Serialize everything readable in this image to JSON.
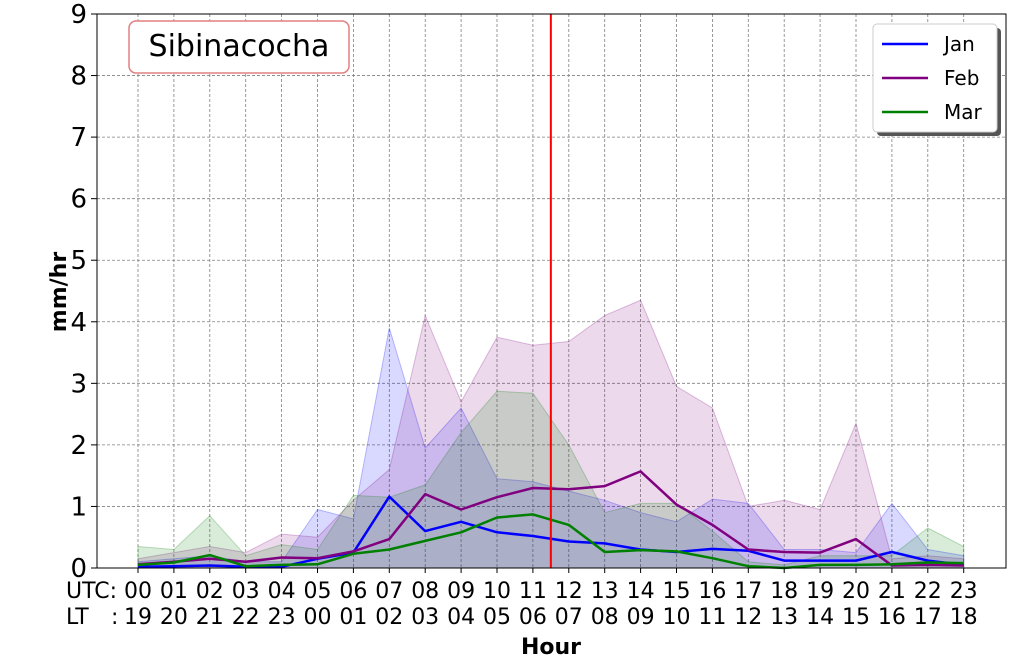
{
  "chart_data": {
    "type": "line",
    "title": "Sibinacocha",
    "xlabel": "Hour",
    "ylabel": "mm/hr",
    "ylim": [
      0,
      9
    ],
    "yticks": [
      "0",
      "1",
      "2",
      "3",
      "4",
      "5",
      "6",
      "7",
      "8",
      "9"
    ],
    "utc_prefix": "UTC:",
    "lt_prefix": "LT",
    "lt_colon": ":",
    "utc_labels": [
      "00",
      "01",
      "02",
      "03",
      "04",
      "05",
      "06",
      "07",
      "08",
      "09",
      "10",
      "11",
      "12",
      "13",
      "14",
      "15",
      "16",
      "17",
      "18",
      "19",
      "20",
      "21",
      "22",
      "23"
    ],
    "lt_labels": [
      "19",
      "20",
      "21",
      "22",
      "23",
      "00",
      "01",
      "02",
      "03",
      "04",
      "05",
      "06",
      "07",
      "08",
      "09",
      "10",
      "11",
      "12",
      "13",
      "14",
      "15",
      "16",
      "17",
      "18"
    ],
    "grid": true,
    "legend_position": "top-right",
    "vline_x": 11.5,
    "vline_color": "#ff0000",
    "series": [
      {
        "name": "Jan",
        "color": "#0000ff",
        "values": [
          0.02,
          0.03,
          0.04,
          0.02,
          0.02,
          0.15,
          0.25,
          1.16,
          0.6,
          0.75,
          0.58,
          0.52,
          0.43,
          0.4,
          0.3,
          0.26,
          0.31,
          0.28,
          0.12,
          0.12,
          0.12,
          0.26,
          0.12,
          0.05
        ],
        "upper": [
          0.1,
          0.15,
          0.2,
          0.1,
          0.1,
          0.95,
          0.8,
          3.9,
          1.95,
          2.6,
          1.45,
          1.4,
          1.25,
          1.1,
          0.9,
          0.75,
          1.12,
          1.05,
          0.3,
          0.3,
          0.25,
          1.05,
          0.3,
          0.2
        ]
      },
      {
        "name": "Feb",
        "color": "#800080",
        "values": [
          0.06,
          0.1,
          0.15,
          0.1,
          0.17,
          0.16,
          0.27,
          0.47,
          1.2,
          0.95,
          1.15,
          1.3,
          1.28,
          1.33,
          1.57,
          1.03,
          0.7,
          0.3,
          0.26,
          0.25,
          0.47,
          0.04,
          0.05,
          0.04
        ],
        "upper": [
          0.15,
          0.25,
          0.35,
          0.25,
          0.55,
          0.5,
          1.1,
          1.6,
          4.1,
          2.7,
          3.75,
          3.62,
          3.68,
          4.1,
          4.35,
          2.95,
          2.6,
          1.0,
          1.1,
          0.95,
          2.35,
          0.15,
          0.2,
          0.15
        ]
      },
      {
        "name": "Mar",
        "color": "#008000",
        "values": [
          0.05,
          0.09,
          0.21,
          0.03,
          0.05,
          0.06,
          0.23,
          0.3,
          0.44,
          0.58,
          0.82,
          0.87,
          0.7,
          0.26,
          0.29,
          0.27,
          0.16,
          0.03,
          0.0,
          0.05,
          0.05,
          0.06,
          0.09,
          0.08
        ],
        "upper": [
          0.35,
          0.3,
          0.85,
          0.2,
          0.38,
          0.3,
          1.18,
          1.15,
          1.35,
          2.2,
          2.87,
          2.84,
          2.0,
          0.9,
          1.05,
          1.05,
          0.6,
          0.1,
          0.05,
          0.2,
          0.2,
          0.2,
          0.65,
          0.35
        ]
      }
    ]
  }
}
